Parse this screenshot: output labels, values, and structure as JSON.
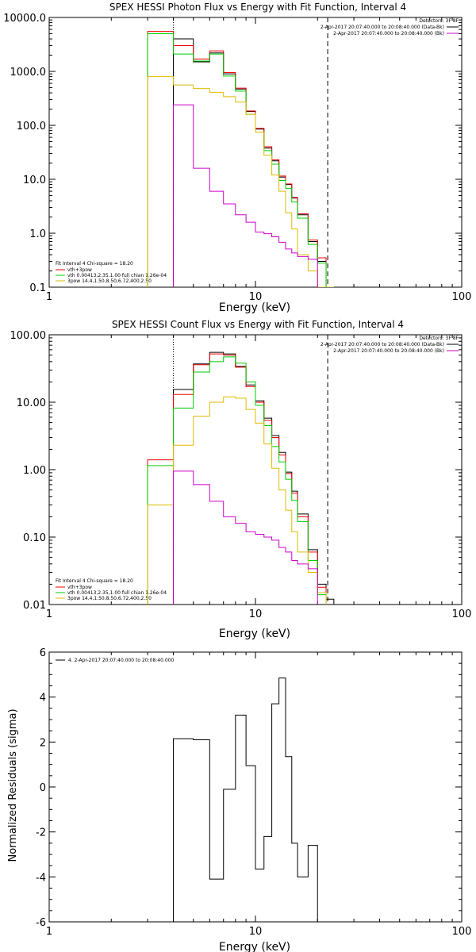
{
  "chart_data": [
    {
      "type": "line",
      "title": "SPEX HESSI Photon Flux vs Energy with Fit Function, Interval 4",
      "xlabel": "Energy (keV)",
      "ylabel": "",
      "xscale": "log",
      "yscale": "log",
      "xlim": [
        1,
        100
      ],
      "ylim": [
        0.1,
        10000
      ],
      "xticks": [
        1,
        10,
        100
      ],
      "xtick_labels": [
        "1",
        "10",
        "100"
      ],
      "yticks": [
        0.1,
        1,
        10,
        100,
        1000,
        10000
      ],
      "ytick_labels": [
        "0.1",
        "1.0",
        "10.0",
        "100.0",
        "1000.0",
        "10000.0"
      ],
      "grid": false,
      "step": true,
      "bin_edges": [
        3,
        4,
        5,
        6,
        7,
        8,
        9,
        10,
        11,
        12,
        13,
        14,
        15,
        16,
        18,
        20,
        22,
        24
      ],
      "vlines": [
        {
          "x": 4,
          "style": "dotted",
          "color": "#000000"
        },
        {
          "x": 22.4,
          "style": "dashed",
          "color": "#000000"
        }
      ],
      "info_legend": {
        "title": "Detectors: 3F 8F",
        "entries": [
          {
            "text": "2-Apr-2017 20:07:40.000 to 20:08:40.000 (Data-Bk)",
            "color": "#000000"
          },
          {
            "text": "2-Apr-2017 20:07:40.000 to 20:08:40.000 (Bk)",
            "color": "#cc00cc"
          }
        ]
      },
      "fit_legend": {
        "title": "Fit Interval 4   Chi-square = 18.20",
        "entries": [
          {
            "text": "vth+3pow",
            "color": "#ee0000"
          },
          {
            "text": "vth 0.00413,2.35,1.00  full chian 1.26e-04",
            "color": "#00cc00"
          },
          {
            "text": "3pow 14.4,1.50,8.50,6.72,400,2.50",
            "color": "#ddbb00"
          }
        ]
      },
      "series": [
        {
          "color": "#000000",
          "values": [
            null,
            4000,
            1500,
            2200,
            900,
            470,
            180,
            85,
            38,
            22,
            11,
            8,
            4.5,
            2.2,
            0.7,
            0.3,
            0.1
          ]
        },
        {
          "color": "#ee0000",
          "values": [
            5500,
            3000,
            1700,
            2400,
            950,
            490,
            185,
            88,
            40,
            23,
            11.5,
            8.2,
            4.6,
            2.3,
            0.75,
            0.35,
            0.1
          ]
        },
        {
          "color": "#00cc00",
          "values": [
            5000,
            2100,
            1550,
            2100,
            820,
            430,
            160,
            75,
            34,
            19,
            9.5,
            6.8,
            3.8,
            1.9,
            0.62,
            0.28,
            0.085
          ]
        },
        {
          "color": "#ddbb00",
          "values": [
            800,
            560,
            480,
            410,
            340,
            270,
            160,
            75,
            28,
            12,
            6,
            2.4,
            1.2,
            0.4,
            0.2,
            0.1,
            0.06
          ]
        },
        {
          "color": "#cc00cc",
          "values": [
            null,
            240,
            16,
            6,
            3.5,
            2.2,
            1.6,
            1.05,
            0.98,
            0.86,
            0.68,
            0.51,
            0.43,
            0.37,
            0.33,
            null,
            null
          ]
        }
      ]
    },
    {
      "type": "line",
      "title": "SPEX HESSI Count Flux vs Energy with Fit Function, Interval 4",
      "xlabel": "Energy (keV)",
      "ylabel": "",
      "xscale": "log",
      "yscale": "log",
      "xlim": [
        1,
        100
      ],
      "ylim": [
        0.01,
        100
      ],
      "xticks": [
        1,
        10,
        100
      ],
      "xtick_labels": [
        "1",
        "10",
        "100"
      ],
      "yticks": [
        0.01,
        0.1,
        1,
        10,
        100
      ],
      "ytick_labels": [
        "0.01",
        "0.10",
        "1.00",
        "10.00",
        "100.00"
      ],
      "grid": false,
      "step": true,
      "bin_edges": [
        3,
        4,
        5,
        6,
        7,
        8,
        9,
        10,
        11,
        12,
        13,
        14,
        15,
        16,
        18,
        20,
        22,
        24
      ],
      "vlines": [
        {
          "x": 4,
          "style": "dotted",
          "color": "#000000"
        },
        {
          "x": 22.4,
          "style": "dashed",
          "color": "#000000"
        }
      ],
      "info_legend": {
        "title": "Detectors: 3F 8F",
        "entries": [
          {
            "text": "2-Apr-2017 20:07:40.000 to 20:08:40.000 (Data-Bk)",
            "color": "#000000"
          },
          {
            "text": "2-Apr-2017 20:07:40.000 to 20:08:40.000 (Bk)",
            "color": "#cc00cc"
          }
        ]
      },
      "fit_legend": {
        "title": "Fit Interval 4   Chi-square = 18.20",
        "entries": [
          {
            "text": "vth+3pow",
            "color": "#ee0000"
          },
          {
            "text": "vth 0.00413,2.35,1.00  full chian 1.26e-04",
            "color": "#00cc00"
          },
          {
            "text": "3pow 14.4,1.50,8.50,6.72,400,2.50",
            "color": "#ddbb00"
          }
        ]
      },
      "series": [
        {
          "color": "#000000",
          "values": [
            null,
            15.5,
            37,
            55,
            52,
            34,
            18,
            10.5,
            5.8,
            3.2,
            1.8,
            0.92,
            0.48,
            0.22,
            0.065,
            0.02,
            0.012
          ]
        },
        {
          "color": "#ee0000",
          "values": [
            1.4,
            13,
            36,
            52,
            50,
            33,
            17,
            10,
            5.4,
            3,
            1.65,
            0.88,
            0.45,
            0.2,
            0.06,
            0.018,
            null
          ]
        },
        {
          "color": "#00cc00",
          "values": [
            1.15,
            8.2,
            28,
            40,
            47,
            38,
            20,
            9,
            4.5,
            2.2,
            1.3,
            0.72,
            0.35,
            0.17,
            0.045,
            0.014,
            null
          ]
        },
        {
          "color": "#ddbb00",
          "values": [
            0.3,
            2.3,
            6.2,
            10,
            12,
            11.5,
            7.8,
            4.9,
            2.4,
            1.05,
            0.5,
            0.25,
            0.12,
            0.06,
            0.03,
            0.015,
            null
          ]
        },
        {
          "color": "#cc00cc",
          "values": [
            null,
            0.95,
            0.6,
            0.34,
            0.2,
            0.16,
            0.12,
            0.11,
            0.1,
            0.09,
            0.07,
            0.06,
            0.045,
            0.04,
            0.034,
            null,
            null
          ]
        }
      ]
    },
    {
      "type": "line",
      "title": "",
      "xlabel": "Energy (keV)",
      "ylabel": "Normalized Residuals (sigma)",
      "xscale": "log",
      "yscale": "linear",
      "xlim": [
        1,
        100
      ],
      "ylim": [
        -6,
        6
      ],
      "xticks": [
        1,
        10,
        100
      ],
      "xtick_labels": [
        "1",
        "10",
        "100"
      ],
      "yticks": [
        -6,
        -4,
        -2,
        0,
        2,
        4,
        6
      ],
      "ytick_labels": [
        "-6",
        "-4",
        "-2",
        "0",
        "2",
        "4",
        "6"
      ],
      "grid": false,
      "step": true,
      "legend": {
        "entries": [
          {
            "text": "4. 2-Apr-2017 20:07:40.000 to 20:08:40.000",
            "color": "#000000"
          }
        ]
      },
      "bin_edges": [
        4,
        5,
        6,
        7,
        8,
        9,
        10,
        11,
        12,
        13,
        14,
        15,
        16,
        18,
        20,
        22.4
      ],
      "series": [
        {
          "color": "#000000",
          "values": [
            2.15,
            2.1,
            -4.1,
            -0.1,
            3.2,
            0.95,
            -3.65,
            -2.2,
            3.7,
            4.85,
            1.35,
            -2.5,
            -4.0,
            -2.6,
            -6
          ]
        }
      ]
    }
  ]
}
